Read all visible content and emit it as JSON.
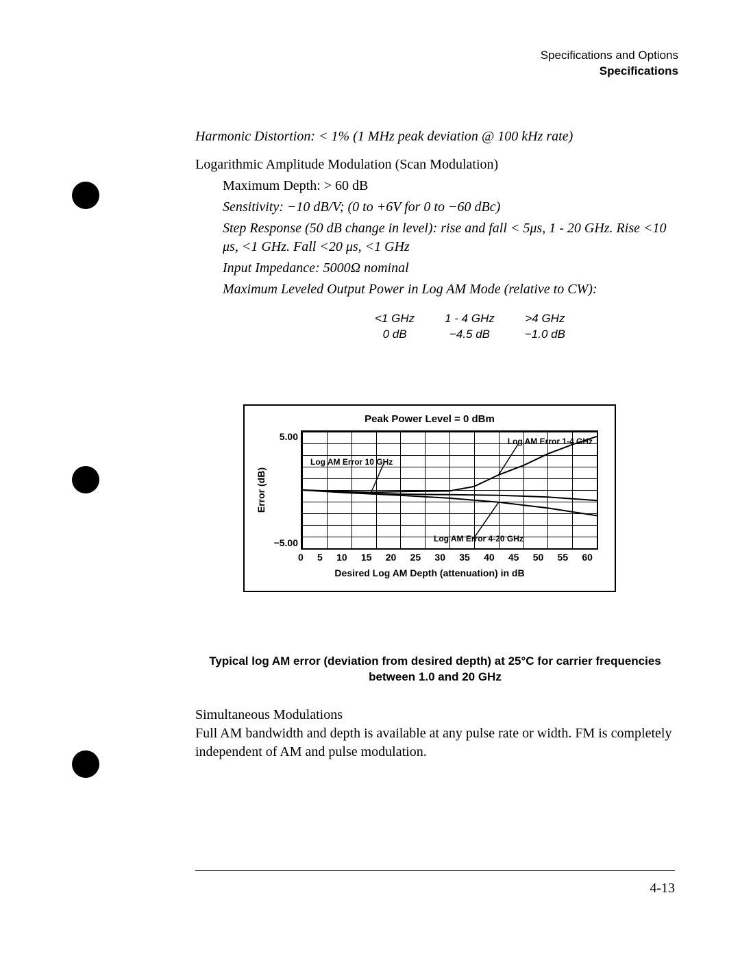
{
  "header": {
    "line1": "Specifications and Options",
    "line2": "Specifications"
  },
  "harmonic": "Harmonic Distortion:  < 1% (1 MHz peak deviation @ 100 kHz rate)",
  "log_am_heading": "Logarithmic Amplitude Modulation (Scan Modulation)",
  "max_depth": "Maximum Depth:  > 60 dB",
  "sensitivity": "Sensitivity:  −10 dB/V; (0 to +6V for 0 to −60 dBc)",
  "step_response": "Step Response (50 dB change in level):  rise and fall < 5μs,  1 - 20 GHz. Rise <10 μs, <1 GHz.  Fall <20 μs, <1 GHz",
  "input_imp": "Input Impedance:  5000Ω nominal",
  "max_leveled": "Maximum Leveled Output Power in Log AM Mode (relative to CW):",
  "power_table": {
    "headers": [
      "<1 GHz",
      "1 - 4 GHz",
      ">4 GHz"
    ],
    "values": [
      "0 dB",
      "−4.5 dB",
      "−1.0 dB"
    ]
  },
  "chart": {
    "title": "Peak Power Level = 0 dBm",
    "ylabel": "Error (dB)",
    "xlabel": "Desired Log AM Depth (attenuation) in dB",
    "yticks": [
      "5.00",
      "−5.00"
    ],
    "xticks": [
      "0",
      "5",
      "10",
      "15",
      "20",
      "25",
      "30",
      "35",
      "40",
      "45",
      "50",
      "55",
      "60"
    ],
    "xlim": [
      0,
      60
    ],
    "ylim": [
      -5,
      5
    ],
    "grid_color": "#000000",
    "annotations": {
      "a1": "Log AM Error 1-4 GHz",
      "a2": "Log AM Error 10 GHz",
      "a3": "Log AM Error 4-20 GHz"
    },
    "series": [
      {
        "name": "1-4 GHz",
        "color": "#000000",
        "width": 2,
        "points": [
          [
            0,
            0
          ],
          [
            14,
            -0.2
          ],
          [
            22,
            -0.12
          ],
          [
            30,
            -0.08
          ],
          [
            35,
            0.3
          ],
          [
            40,
            1.3
          ],
          [
            45,
            2.1
          ],
          [
            50,
            3.1
          ],
          [
            55,
            3.9
          ],
          [
            60,
            4.6
          ]
        ]
      },
      {
        "name": "10 GHz",
        "color": "#000000",
        "width": 2,
        "points": [
          [
            0,
            0
          ],
          [
            10,
            -0.25
          ],
          [
            20,
            -0.35
          ],
          [
            30,
            -0.4
          ],
          [
            40,
            -0.45
          ],
          [
            50,
            -0.6
          ],
          [
            60,
            -0.9
          ]
        ]
      },
      {
        "name": "4-20 GHz",
        "color": "#000000",
        "width": 2,
        "points": [
          [
            0,
            0
          ],
          [
            10,
            -0.25
          ],
          [
            20,
            -0.45
          ],
          [
            30,
            -0.7
          ],
          [
            40,
            -1.05
          ],
          [
            50,
            -1.55
          ],
          [
            60,
            -2.2
          ]
        ]
      }
    ]
  },
  "fig_caption": "Typical log AM error (deviation from desired depth) at 25°C for carrier frequencies between 1.0 and 20 GHz",
  "sim_heading": "Simultaneous Modulations",
  "sim_body": "Full AM bandwidth and depth is available at any pulse rate or width. FM is completely independent of AM and pulse modulation.",
  "page_number": "4-13"
}
